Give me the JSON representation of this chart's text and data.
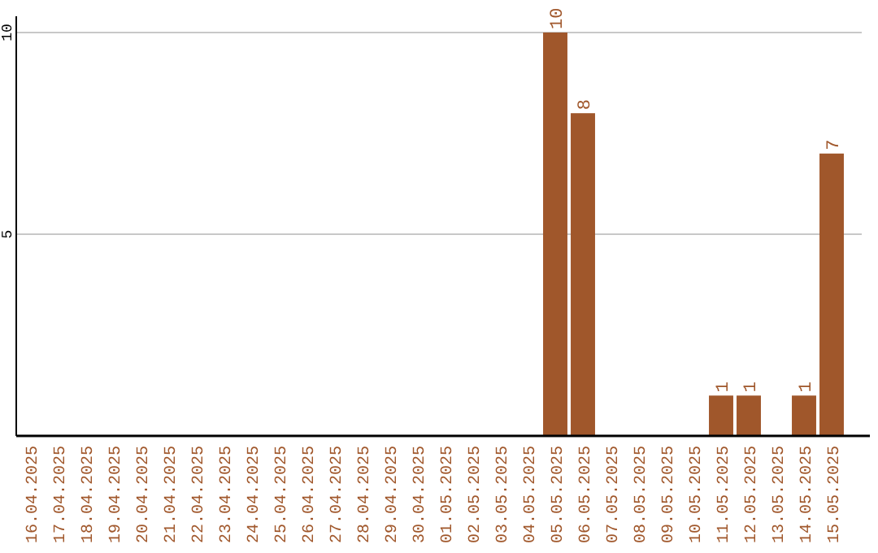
{
  "chart_data": {
    "type": "bar",
    "categories": [
      "16.04.2025",
      "17.04.2025",
      "18.04.2025",
      "19.04.2025",
      "20.04.2025",
      "21.04.2025",
      "22.04.2025",
      "23.04.2025",
      "24.04.2025",
      "25.04.2025",
      "26.04.2025",
      "27.04.2025",
      "28.04.2025",
      "29.04.2025",
      "30.04.2025",
      "01.05.2025",
      "02.05.2025",
      "03.05.2025",
      "04.05.2025",
      "05.05.2025",
      "06.05.2025",
      "07.05.2025",
      "08.05.2025",
      "09.05.2025",
      "10.05.2025",
      "11.05.2025",
      "12.05.2025",
      "13.05.2025",
      "14.05.2025",
      "15.05.2025"
    ],
    "values": [
      0,
      0,
      0,
      0,
      0,
      0,
      0,
      0,
      0,
      0,
      0,
      0,
      0,
      0,
      0,
      0,
      0,
      0,
      0,
      10,
      8,
      0,
      0,
      0,
      0,
      1,
      1,
      0,
      1,
      7
    ],
    "value_labels": [
      null,
      null,
      null,
      null,
      null,
      null,
      null,
      null,
      null,
      null,
      null,
      null,
      null,
      null,
      null,
      null,
      null,
      null,
      null,
      "10",
      "8",
      null,
      null,
      null,
      null,
      "1",
      "1",
      null,
      "1",
      "7"
    ],
    "color": "#a0572b",
    "ylim": [
      0,
      10
    ],
    "yticks": [
      5,
      10
    ],
    "grid": "y"
  }
}
